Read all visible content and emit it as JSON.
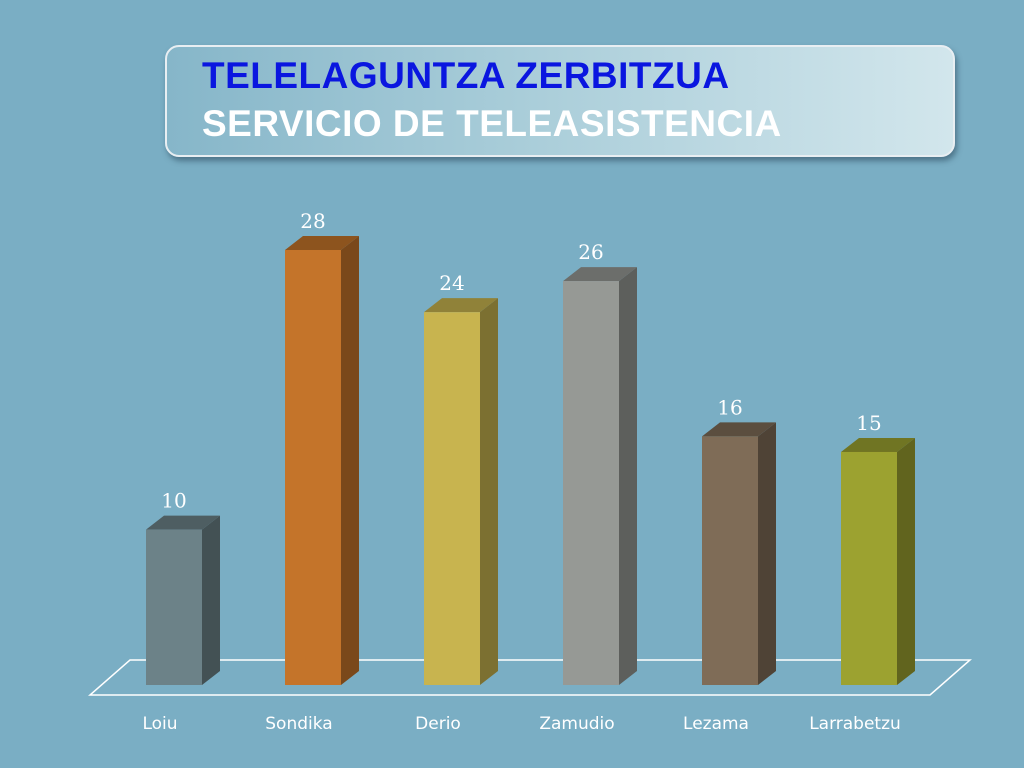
{
  "title": {
    "line1": "TELELAGUNTZA ZERBITZUA",
    "line2": "SERVICIO DE TELEASISTENCIA"
  },
  "chart_data": {
    "type": "bar",
    "title": "",
    "xlabel": "",
    "ylabel": "",
    "ylim": [
      0,
      28
    ],
    "grid": false,
    "legend": "none",
    "categories": [
      "Loiu",
      "Sondika",
      "Derio",
      "Zamudio",
      "Lezama",
      "Larrabetzu"
    ],
    "values": [
      10,
      28,
      24,
      26,
      16,
      15
    ],
    "colors": [
      "#6c8288",
      "#c4742a",
      "#c8b44f",
      "#969995",
      "#7f6c57",
      "#9ca230"
    ]
  }
}
